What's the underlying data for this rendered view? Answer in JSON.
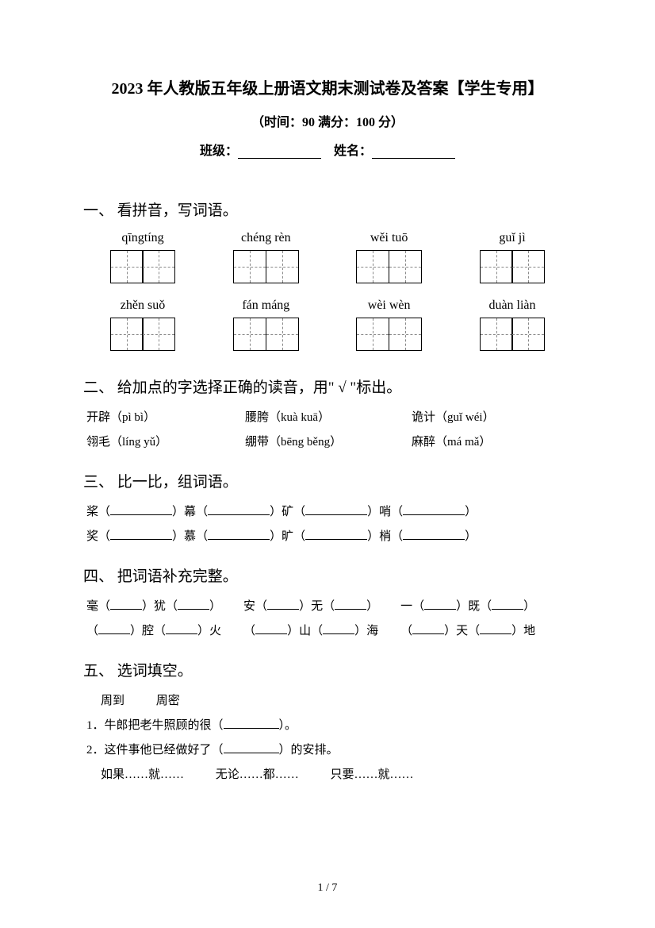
{
  "title": "2023 年人教版五年级上册语文期末测试卷及答案【学生专用】",
  "subtitle": "（时间：90   满分：100 分）",
  "fill_labels": {
    "class": "班级：",
    "name": "姓名："
  },
  "sections": {
    "s1": {
      "title": "一、 看拼音，写词语。",
      "row1": [
        "qīngtíng",
        "chéng rèn",
        "wěi tuō",
        "guǐ jì"
      ],
      "row2": [
        "zhěn suǒ",
        "fán máng",
        "wèi wèn",
        "duàn liàn"
      ]
    },
    "s2": {
      "title": "二、 给加点的字选择正确的读音，用\" √ \"标出。",
      "row1": [
        {
          "char": "开辟",
          "dotIndex": 1,
          "pinyin": "（pì bì）"
        },
        {
          "char": "腰胯",
          "dotIndex": 1,
          "pinyin": "（kuà kuā）"
        },
        {
          "char": "诡计",
          "dotIndex": 0,
          "pinyin": "（guǐ wéi）"
        }
      ],
      "row2": [
        {
          "char": "翎毛",
          "dotIndex": 0,
          "pinyin": "（líng yǔ）"
        },
        {
          "char": "绷带",
          "dotIndex": 0,
          "pinyin": "（bēng běng）"
        },
        {
          "char": "麻醉",
          "dotIndex": 0,
          "pinyin": "（má mǎ）"
        }
      ]
    },
    "s3": {
      "title": "三、 比一比，组词语。",
      "line1": [
        "桨",
        "幕",
        "矿",
        "哨"
      ],
      "line2": [
        "奖",
        "慕",
        "旷",
        "梢"
      ]
    },
    "s4": {
      "title": "四、 把词语补充完整。",
      "line1": [
        {
          "parts": [
            "毫（",
            "）犹（",
            "）"
          ]
        },
        {
          "parts": [
            "安（",
            "）无（",
            "）"
          ]
        },
        {
          "parts": [
            "一（",
            "）既（",
            "）"
          ]
        }
      ],
      "line2": [
        {
          "parts": [
            "（",
            "）腔（",
            "）火"
          ]
        },
        {
          "parts": [
            "（",
            "）山（",
            "）海"
          ]
        },
        {
          "parts": [
            "（",
            "）天（",
            "）地"
          ]
        }
      ]
    },
    "s5": {
      "title": "五、 选词填空。",
      "words": [
        "周到",
        "周密"
      ],
      "q1": "1．牛郎把老牛照顾的很（",
      "q1end": "）。",
      "q2": "2．这件事他已经做好了（",
      "q2end": "）的安排。",
      "conj": [
        "如果……就……",
        "无论……都……",
        "只要……就……"
      ]
    }
  },
  "page": "1 / 7"
}
